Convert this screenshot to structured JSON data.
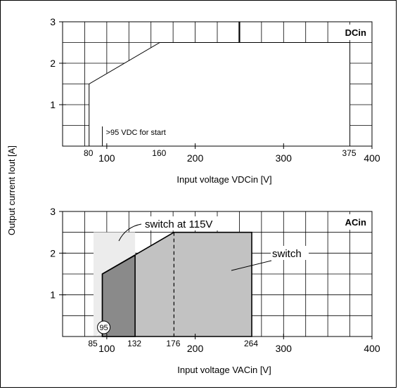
{
  "ylabel": "Output current Iout [A]",
  "chart_data": [
    {
      "type": "area",
      "title_tag": "DCin",
      "xlabel": "Input voltage VDCin [V]",
      "xlim": [
        50,
        400
      ],
      "ylim": [
        0,
        3
      ],
      "x_ticks": [
        100,
        200,
        300,
        400
      ],
      "y_ticks": [
        1,
        2,
        3
      ],
      "grid": true,
      "series": [
        {
          "x": [
            80,
            80,
            160,
            375,
            375
          ],
          "y": [
            0,
            1.5,
            2.5,
            2.5,
            0
          ]
        }
      ],
      "markers": [
        {
          "x": 80,
          "label": "80"
        },
        {
          "x": 160,
          "label": "160"
        },
        {
          "x": 375,
          "label": "375"
        }
      ],
      "annotations": [
        {
          "x": 95,
          "text": ">95 VDC for start"
        }
      ],
      "fill": "#ffffff"
    },
    {
      "type": "area",
      "title_tag": "ACin",
      "xlabel": "Input voltage VACin [V]",
      "xlim": [
        50,
        400
      ],
      "ylim": [
        0,
        3
      ],
      "x_ticks": [
        100,
        200,
        300,
        400
      ],
      "y_ticks": [
        1,
        2,
        3
      ],
      "grid": true,
      "regions": [
        {
          "name": "switch at 115V",
          "x": [
            85,
            85,
            132,
            132
          ],
          "y": [
            0,
            2.5,
            2.5,
            0
          ],
          "color": "#ececec"
        },
        {
          "name": "switch",
          "x": [
            95,
            95,
            176,
            264,
            264
          ],
          "y": [
            0,
            1.5,
            2.5,
            2.5,
            0
          ],
          "color": "#c2c2c2"
        },
        {
          "name": "",
          "x": [
            95,
            95,
            132,
            132
          ],
          "y": [
            0,
            1.5,
            1.95,
            0
          ],
          "color": "#8a8a8a"
        }
      ],
      "markers": [
        {
          "x": 85,
          "label": "85"
        },
        {
          "x": 132,
          "label": "132"
        },
        {
          "x": 176,
          "label": "176"
        },
        {
          "x": 264,
          "label": "264"
        }
      ],
      "circle_label": {
        "x": 95,
        "text": "95"
      },
      "callouts": [
        "switch at 115V",
        "switch"
      ]
    }
  ]
}
